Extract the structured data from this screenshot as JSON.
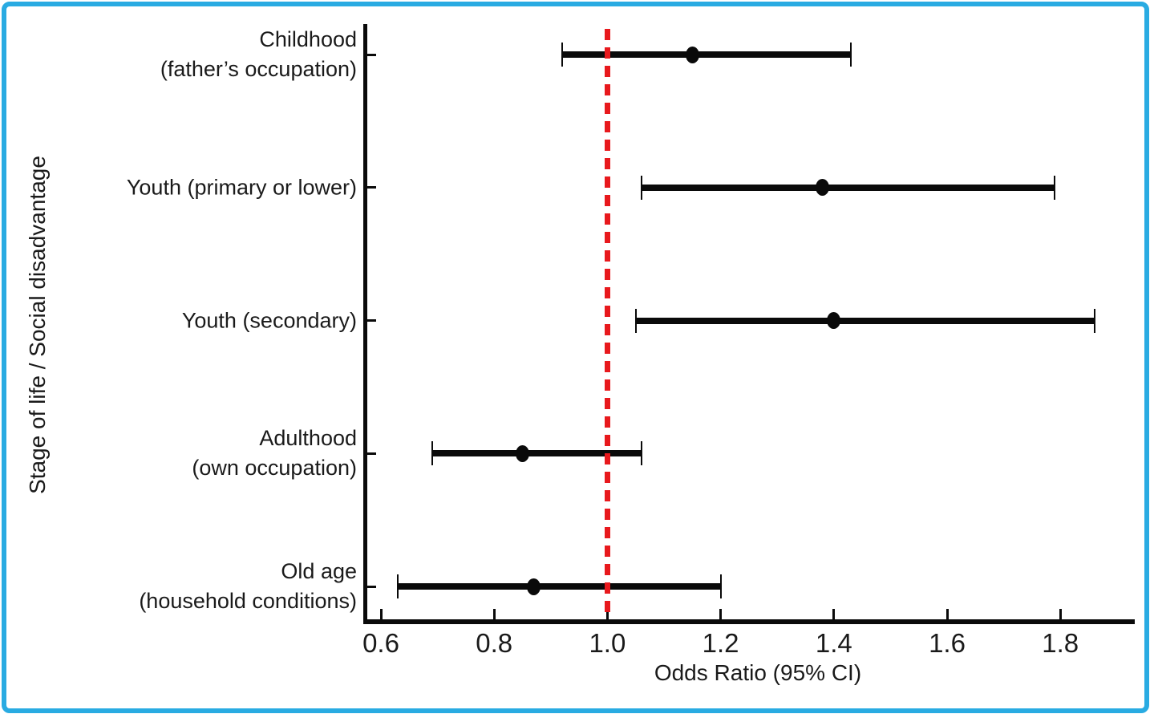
{
  "figure": {
    "xlabel": "Odds Ratio (95% CI)",
    "ylabel": "Stage of life / Social disadvantage"
  },
  "chart_data": {
    "type": "scatter",
    "subtype": "forest-plot-horizontal-errorbars",
    "title": "",
    "xlabel": "Odds Ratio (95% CI)",
    "ylabel": "Stage of life / Social disadvantage",
    "xlim": [
      0.57,
      1.93
    ],
    "xticks": [
      0.6,
      0.8,
      1.0,
      1.2,
      1.4,
      1.6,
      1.8
    ],
    "grid": false,
    "legend": "none",
    "reference_line": {
      "x": 1.0,
      "style": "dashed",
      "color": "#e8191d"
    },
    "categories": [
      "Childhood (father's occupation)",
      "Youth (primary or lower)",
      "Youth (secondary)",
      "Adulthood (own occupation)",
      "Old age (household conditions)"
    ],
    "series": [
      {
        "label_lines": [
          "Childhood",
          "(father’s occupation)"
        ],
        "odds_ratio": 1.15,
        "ci_low": 0.92,
        "ci_high": 1.43
      },
      {
        "label_lines": [
          "Youth (primary or lower)"
        ],
        "odds_ratio": 1.38,
        "ci_low": 1.06,
        "ci_high": 1.79
      },
      {
        "label_lines": [
          "Youth (secondary)"
        ],
        "odds_ratio": 1.4,
        "ci_low": 1.05,
        "ci_high": 1.86
      },
      {
        "label_lines": [
          "Adulthood",
          "(own occupation)"
        ],
        "odds_ratio": 0.85,
        "ci_low": 0.69,
        "ci_high": 1.06
      },
      {
        "label_lines": [
          "Old age",
          "(household conditions)"
        ],
        "odds_ratio": 0.87,
        "ci_low": 0.63,
        "ci_high": 1.2
      }
    ],
    "colors": {
      "marker": "#0a0a0a",
      "error_bar": "#0a0a0a",
      "reference_line": "#e8191d",
      "frame_border": "#29abe2",
      "text": "#1a1a1a",
      "background": "#ffffff"
    }
  }
}
